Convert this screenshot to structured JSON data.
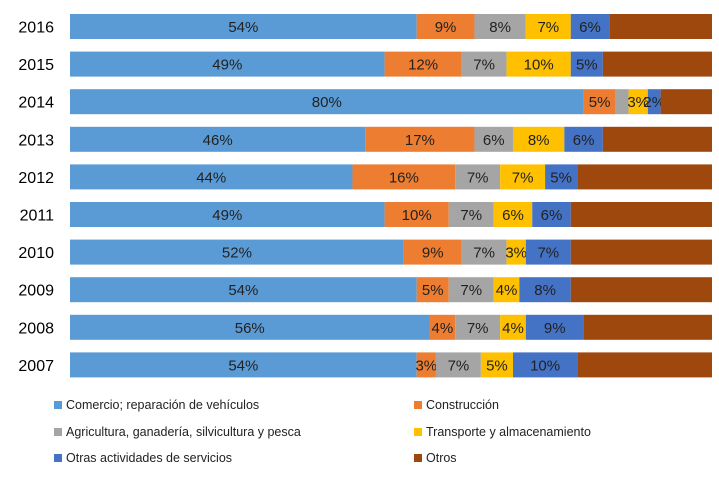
{
  "chart_data": {
    "type": "bar",
    "orientation": "horizontal",
    "stacked": "percent",
    "grid": false,
    "legend_position": "bottom",
    "xlim": [
      0,
      100
    ],
    "categories": [
      "2016",
      "2015",
      "2014",
      "2013",
      "2012",
      "2011",
      "2010",
      "2009",
      "2008",
      "2007"
    ],
    "series": [
      {
        "name": "Comercio; reparación de vehículos",
        "color": "#5B9BD5",
        "values": [
          54,
          49,
          80,
          46,
          44,
          49,
          52,
          54,
          56,
          54
        ],
        "labels": [
          "54%",
          "49%",
          "80%",
          "46%",
          "44%",
          "49%",
          "52%",
          "54%",
          "56%",
          "54%"
        ]
      },
      {
        "name": "Construcción",
        "color": "#ED7D31",
        "values": [
          9,
          12,
          5,
          17,
          16,
          10,
          9,
          5,
          4,
          3
        ],
        "labels": [
          "9%",
          "12%",
          "5%",
          "17%",
          "16%",
          "10%",
          "9%",
          "5%",
          "4%",
          "3%"
        ]
      },
      {
        "name": "Agricultura, ganadería,  silvicultura y pesca",
        "color": "#A5A5A5",
        "values": [
          8,
          7,
          2,
          6,
          7,
          7,
          7,
          7,
          7,
          7
        ],
        "labels": [
          "8%",
          "7%",
          "",
          "6%",
          "7%",
          "7%",
          "7%",
          "7%",
          "7%",
          "7%"
        ]
      },
      {
        "name": "Transporte y almacenamiento",
        "color": "#FFC000",
        "values": [
          7,
          10,
          3,
          8,
          7,
          6,
          3,
          4,
          4,
          5
        ],
        "labels": [
          "7%",
          "10%",
          "3%",
          "8%",
          "7%",
          "6%",
          "3%",
          "4%",
          "4%",
          "5%"
        ]
      },
      {
        "name": "Otras actividades de servicios",
        "color": "#4472C4",
        "values": [
          6,
          5,
          2,
          6,
          5,
          6,
          7,
          8,
          9,
          10
        ],
        "labels": [
          "6%",
          "5%",
          "2%",
          "6%",
          "5%",
          "6%",
          "7%",
          "8%",
          "9%",
          "10%"
        ]
      },
      {
        "name": "Otros",
        "color": "#9E480E",
        "values": [
          16,
          17,
          8,
          17,
          21,
          22,
          22,
          22,
          20,
          21
        ],
        "labels": [
          "",
          "",
          "",
          "",
          "",
          "",
          "",
          "",
          "",
          ""
        ]
      }
    ]
  }
}
